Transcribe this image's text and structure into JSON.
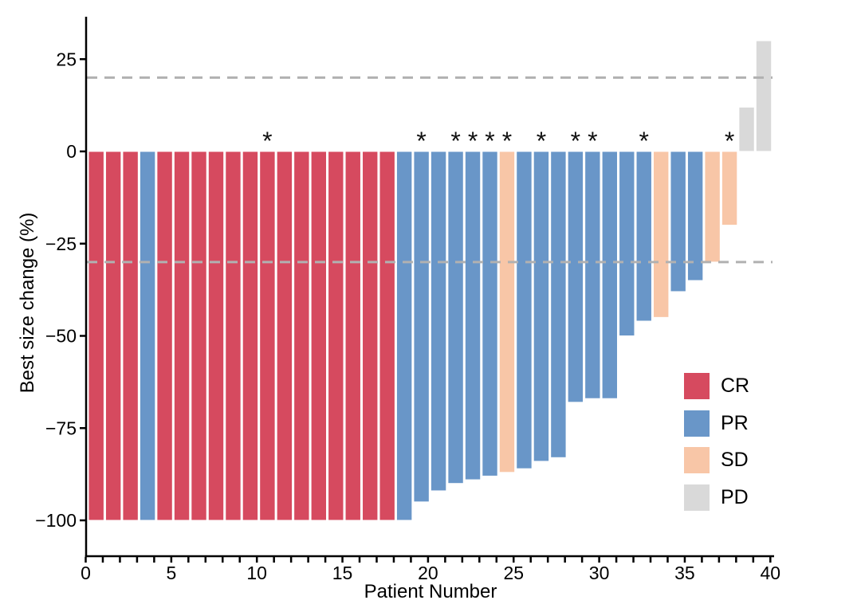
{
  "figure": {
    "background": "#FFFFFF"
  },
  "chart_data": {
    "type": "bar",
    "subtype": "waterfall",
    "title": "",
    "xlabel": "Patient Number",
    "ylabel": "Best size change (%)",
    "xlim": [
      0,
      40
    ],
    "ylim": [
      -110,
      36
    ],
    "grid": "off",
    "axis_color": "#000000",
    "xtick_major": [
      {
        "value": 0,
        "label": "0"
      },
      {
        "value": 5,
        "label": "5"
      },
      {
        "value": 10,
        "label": "10"
      },
      {
        "value": 15,
        "label": "15"
      },
      {
        "value": 20,
        "label": "20"
      },
      {
        "value": 25,
        "label": "25"
      },
      {
        "value": 30,
        "label": "30"
      },
      {
        "value": 35,
        "label": "35"
      },
      {
        "value": 40,
        "label": "40"
      }
    ],
    "xtick_minor_every": 1,
    "yticks": [
      {
        "value": 25,
        "label": "25"
      },
      {
        "value": 0,
        "label": "0"
      },
      {
        "value": -25,
        "label": "−25"
      },
      {
        "value": -50,
        "label": "−50"
      },
      {
        "value": -75,
        "label": "−75"
      },
      {
        "value": -100,
        "label": "−100"
      }
    ],
    "thresholds": [
      {
        "name": "progressive-disease-threshold",
        "value": 20,
        "style": "dashed",
        "color": "#B1B1B1"
      },
      {
        "name": "partial-response-threshold",
        "value": -30,
        "style": "dashed",
        "color": "#B1B1B1"
      }
    ],
    "marker_glyph": "*",
    "marker_color": "#111111",
    "legend": {
      "position": "right-lower",
      "entries": [
        {
          "label": "CR",
          "color": "#D64A5F"
        },
        {
          "label": "PR",
          "color": "#6996C8"
        },
        {
          "label": "SD",
          "color": "#F8C6A7"
        },
        {
          "label": "PD",
          "color": "#D9D9D9"
        }
      ]
    },
    "patients": [
      {
        "patient": 1,
        "value": -100,
        "response": "CR",
        "marker": false
      },
      {
        "patient": 2,
        "value": -100,
        "response": "CR",
        "marker": false
      },
      {
        "patient": 3,
        "value": -100,
        "response": "CR",
        "marker": false
      },
      {
        "patient": 4,
        "value": -100,
        "response": "PR",
        "marker": false
      },
      {
        "patient": 5,
        "value": -100,
        "response": "CR",
        "marker": false
      },
      {
        "patient": 6,
        "value": -100,
        "response": "CR",
        "marker": false
      },
      {
        "patient": 7,
        "value": -100,
        "response": "CR",
        "marker": false
      },
      {
        "patient": 8,
        "value": -100,
        "response": "CR",
        "marker": false
      },
      {
        "patient": 9,
        "value": -100,
        "response": "CR",
        "marker": false
      },
      {
        "patient": 10,
        "value": -100,
        "response": "CR",
        "marker": false
      },
      {
        "patient": 11,
        "value": -100,
        "response": "CR",
        "marker": true
      },
      {
        "patient": 12,
        "value": -100,
        "response": "CR",
        "marker": false
      },
      {
        "patient": 13,
        "value": -100,
        "response": "CR",
        "marker": false
      },
      {
        "patient": 14,
        "value": -100,
        "response": "CR",
        "marker": false
      },
      {
        "patient": 15,
        "value": -100,
        "response": "CR",
        "marker": false
      },
      {
        "patient": 16,
        "value": -100,
        "response": "CR",
        "marker": false
      },
      {
        "patient": 17,
        "value": -100,
        "response": "CR",
        "marker": false
      },
      {
        "patient": 18,
        "value": -100,
        "response": "CR",
        "marker": false
      },
      {
        "patient": 19,
        "value": -100,
        "response": "PR",
        "marker": false
      },
      {
        "patient": 20,
        "value": -95,
        "response": "PR",
        "marker": true
      },
      {
        "patient": 21,
        "value": -92,
        "response": "PR",
        "marker": false
      },
      {
        "patient": 22,
        "value": -90,
        "response": "PR",
        "marker": true
      },
      {
        "patient": 23,
        "value": -89,
        "response": "PR",
        "marker": true
      },
      {
        "patient": 24,
        "value": -88,
        "response": "PR",
        "marker": true
      },
      {
        "patient": 25,
        "value": -87,
        "response": "SD",
        "marker": true
      },
      {
        "patient": 26,
        "value": -86,
        "response": "PR",
        "marker": false
      },
      {
        "patient": 27,
        "value": -84,
        "response": "PR",
        "marker": true
      },
      {
        "patient": 28,
        "value": -83,
        "response": "PR",
        "marker": false
      },
      {
        "patient": 29,
        "value": -68,
        "response": "PR",
        "marker": true
      },
      {
        "patient": 30,
        "value": -67,
        "response": "PR",
        "marker": true
      },
      {
        "patient": 31,
        "value": -67,
        "response": "PR",
        "marker": false
      },
      {
        "patient": 32,
        "value": -50,
        "response": "PR",
        "marker": false
      },
      {
        "patient": 33,
        "value": -46,
        "response": "PR",
        "marker": true
      },
      {
        "patient": 34,
        "value": -45,
        "response": "SD",
        "marker": false
      },
      {
        "patient": 35,
        "value": -38,
        "response": "PR",
        "marker": false
      },
      {
        "patient": 36,
        "value": -35,
        "response": "PR",
        "marker": false
      },
      {
        "patient": 37,
        "value": -30,
        "response": "SD",
        "marker": false
      },
      {
        "patient": 38,
        "value": -20,
        "response": "SD",
        "marker": true
      },
      {
        "patient": 39,
        "value": 12,
        "response": "PD",
        "marker": false
      },
      {
        "patient": 40,
        "value": 30,
        "response": "PD",
        "marker": false
      }
    ]
  }
}
